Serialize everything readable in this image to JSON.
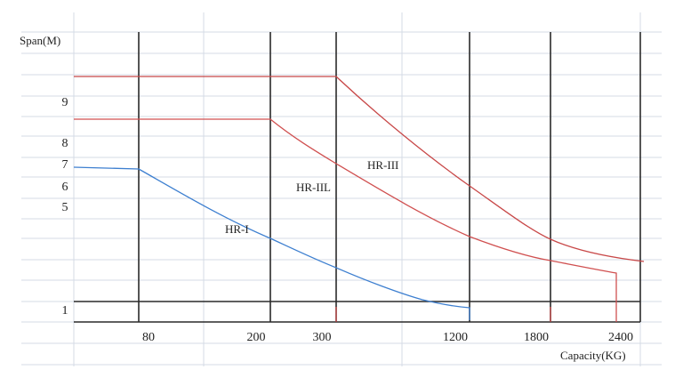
{
  "chart_data": {
    "type": "line",
    "ylabel": "Span(M)",
    "xlabel": "Capacity(KG)",
    "x_ticks": [
      "80",
      "200",
      "300",
      "1200",
      "1800",
      "2400"
    ],
    "y_ticks": [
      "1",
      "5",
      "6",
      "7",
      "8",
      "9"
    ],
    "grid": true,
    "colors": {
      "HR-I": "#3d7fd0",
      "HR-IIL": "#d05050",
      "HR-III": "#c84848"
    },
    "series": [
      {
        "name": "HR-I",
        "points": [
          {
            "x": 0,
            "y": 6.9
          },
          {
            "x": 80,
            "y": 6.85
          },
          {
            "x": 140,
            "y": 5.9
          },
          {
            "x": 200,
            "y": 4.6
          },
          {
            "x": 300,
            "y": 3.0
          },
          {
            "x": 750,
            "y": 1.5
          },
          {
            "x": 1200,
            "y": 1.05
          }
        ]
      },
      {
        "name": "HR-IIL",
        "points": [
          {
            "x": 0,
            "y": 9.0
          },
          {
            "x": 200,
            "y": 9.0
          },
          {
            "x": 300,
            "y": 7.3
          },
          {
            "x": 750,
            "y": 5.4
          },
          {
            "x": 1200,
            "y": 4.2
          },
          {
            "x": 1800,
            "y": 3.3
          },
          {
            "x": 2400,
            "y": 2.85
          }
        ]
      },
      {
        "name": "HR-III",
        "points": [
          {
            "x": 0,
            "y": 11.05
          },
          {
            "x": 300,
            "y": 11.05
          },
          {
            "x": 750,
            "y": 9.0
          },
          {
            "x": 1200,
            "y": 6.9
          },
          {
            "x": 1800,
            "y": 4.3
          },
          {
            "x": 2100,
            "y": 3.7
          },
          {
            "x": 2400,
            "y": 3.35
          }
        ]
      }
    ]
  }
}
